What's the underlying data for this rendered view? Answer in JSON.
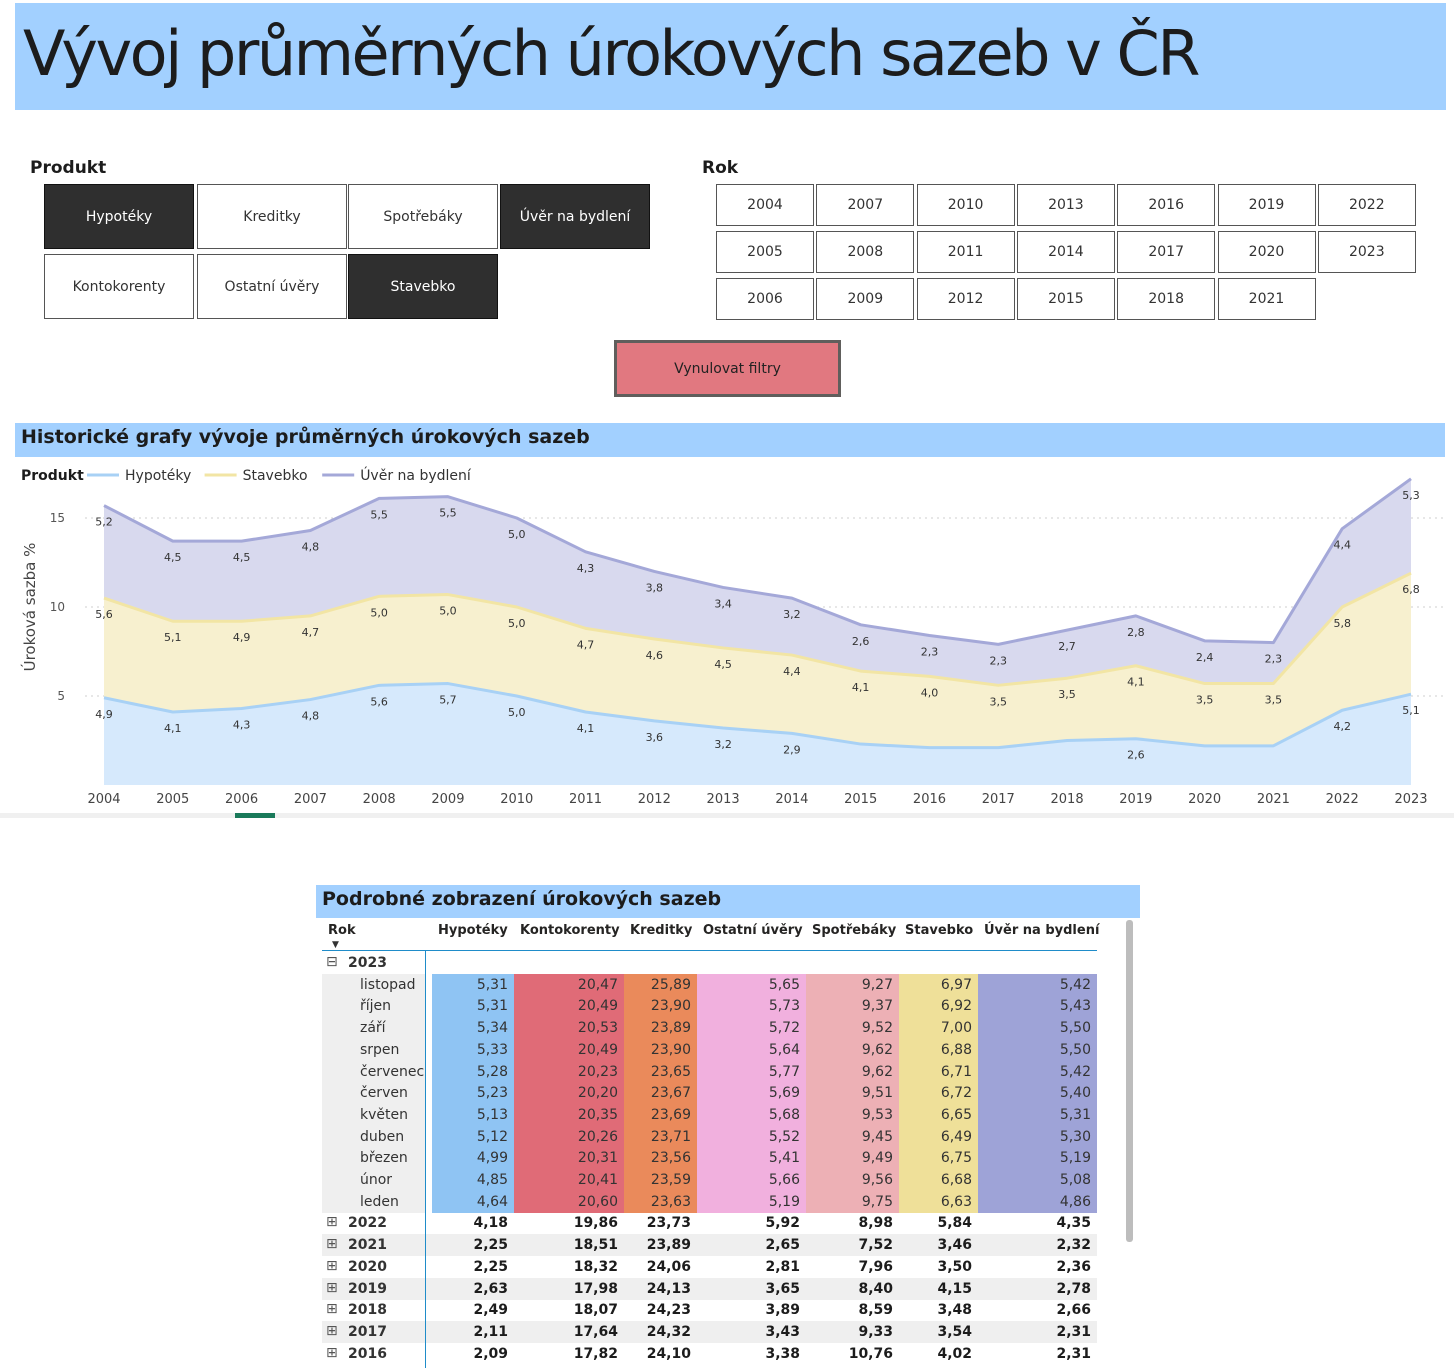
{
  "title": "Vývoj průměrných úrokových sazeb v ČR",
  "slicer_produkt": {
    "label": "Produkt",
    "items": [
      {
        "label": "Hypotéky",
        "selected": true
      },
      {
        "label": "Kreditky",
        "selected": false
      },
      {
        "label": "Spotřebáky",
        "selected": false
      },
      {
        "label": "Úvěr na bydlení",
        "selected": true
      },
      {
        "label": "Kontokorenty",
        "selected": false
      },
      {
        "label": "Ostatní úvěry",
        "selected": false
      },
      {
        "label": "Stavebko",
        "selected": true
      }
    ]
  },
  "slicer_rok": {
    "label": "Rok",
    "rows": [
      [
        "2004",
        "2007",
        "2010",
        "2013",
        "2016",
        "2019",
        "2022"
      ],
      [
        "2005",
        "2008",
        "2011",
        "2014",
        "2017",
        "2020",
        "2023"
      ],
      [
        "2006",
        "2009",
        "2012",
        "2015",
        "2018",
        "2021"
      ]
    ]
  },
  "reset_button": "Vynulovat filtry",
  "chart_section_title": "Historické grafy vývoje průměrných úrokových sazeb",
  "chart_data": {
    "type": "area",
    "stacked": true,
    "legend_title": "Produkt",
    "legend_position": "top-left",
    "ylabel": "Úroková sazba %",
    "y_ticks": [
      5,
      10,
      15
    ],
    "ylim": [
      0,
      17.5
    ],
    "grid": true,
    "x": [
      "2004",
      "2005",
      "2006",
      "2007",
      "2008",
      "2009",
      "2010",
      "2011",
      "2012",
      "2013",
      "2014",
      "2015",
      "2016",
      "2017",
      "2018",
      "2019",
      "2020",
      "2021",
      "2022",
      "2023"
    ],
    "series": [
      {
        "name": "Hypotéky",
        "color": "#a8d1f5",
        "fill": "#d6e9fc",
        "values": [
          4.9,
          4.1,
          4.3,
          4.8,
          5.6,
          5.7,
          5.0,
          4.1,
          3.6,
          3.2,
          2.9,
          2.3,
          2.1,
          2.1,
          2.5,
          2.6,
          2.2,
          2.2,
          4.2,
          5.1
        ]
      },
      {
        "name": "Stavebko",
        "color": "#f2e5a4",
        "fill": "#f7f0cf",
        "values": [
          5.6,
          5.1,
          4.9,
          4.7,
          5.0,
          5.0,
          5.0,
          4.7,
          4.6,
          4.5,
          4.4,
          4.1,
          4.0,
          3.5,
          3.5,
          4.1,
          3.5,
          3.5,
          5.8,
          6.8
        ]
      },
      {
        "name": "Úvěr na bydlení",
        "color": "#a4a8d8",
        "fill": "#d8d9ee",
        "values": [
          5.2,
          4.5,
          4.5,
          4.8,
          5.5,
          5.5,
          5.0,
          4.3,
          3.8,
          3.4,
          3.2,
          2.6,
          2.3,
          2.3,
          2.7,
          2.8,
          2.4,
          2.3,
          4.4,
          5.3
        ]
      }
    ],
    "labels": [
      [
        "4,9",
        "4,1",
        "4,3",
        "4,8",
        "5,6",
        "5,7",
        "5,0",
        "4,1",
        "3,6",
        "3,2",
        "2,9",
        "",
        "",
        "",
        "",
        "2,6",
        "",
        "",
        "4,2",
        "5,1"
      ],
      [
        "5,6",
        "5,1",
        "4,9",
        "4,7",
        "5,0",
        "5,0",
        "5,0",
        "4,7",
        "4,6",
        "4,5",
        "4,4",
        "4,1",
        "4,0",
        "3,5",
        "3,5",
        "4,1",
        "3,5",
        "3,5",
        "5,8",
        "6,8"
      ],
      [
        "5,2",
        "4,5",
        "4,5",
        "4,8",
        "5,5",
        "5,5",
        "5,0",
        "4,3",
        "3,8",
        "3,4",
        "3,2",
        "2,6",
        "2,3",
        "2,3",
        "2,7",
        "2,8",
        "2,4",
        "2,3",
        "4,4",
        "5,3"
      ]
    ]
  },
  "table": {
    "title": "Podrobné zobrazení úrokových sazeb",
    "columns": [
      "Rok",
      "Hypotéky",
      "Kontokorenty",
      "Kreditky",
      "Ostatní úvěry",
      "Spotřebáky",
      "Stavebko",
      "Úvěr na bydlení"
    ],
    "column_colors": [
      "#8fc4f3",
      "#e06b77",
      "#ea8a5b",
      "#f1b0de",
      "#edb0b5",
      "#efe099",
      "#9ea3d7"
    ],
    "expanded_year": {
      "year": "2023",
      "collapse_glyph": "⊟"
    },
    "months": [
      {
        "label": "listopad",
        "values": [
          "5,31",
          "20,47",
          "25,89",
          "5,65",
          "9,27",
          "6,97",
          "5,42"
        ]
      },
      {
        "label": "říjen",
        "values": [
          "5,31",
          "20,49",
          "23,90",
          "5,73",
          "9,37",
          "6,92",
          "5,43"
        ]
      },
      {
        "label": "září",
        "values": [
          "5,34",
          "20,53",
          "23,89",
          "5,72",
          "9,52",
          "7,00",
          "5,50"
        ]
      },
      {
        "label": "srpen",
        "values": [
          "5,33",
          "20,49",
          "23,90",
          "5,64",
          "9,62",
          "6,88",
          "5,50"
        ]
      },
      {
        "label": "červenec",
        "values": [
          "5,28",
          "20,23",
          "23,65",
          "5,77",
          "9,62",
          "6,71",
          "5,42"
        ]
      },
      {
        "label": "červen",
        "values": [
          "5,23",
          "20,20",
          "23,67",
          "5,69",
          "9,51",
          "6,72",
          "5,40"
        ]
      },
      {
        "label": "květen",
        "values": [
          "5,13",
          "20,35",
          "23,69",
          "5,68",
          "9,53",
          "6,65",
          "5,31"
        ]
      },
      {
        "label": "duben",
        "values": [
          "5,12",
          "20,26",
          "23,71",
          "5,52",
          "9,45",
          "6,49",
          "5,30"
        ]
      },
      {
        "label": "březen",
        "values": [
          "4,99",
          "20,31",
          "23,56",
          "5,41",
          "9,49",
          "6,75",
          "5,19"
        ]
      },
      {
        "label": "únor",
        "values": [
          "4,85",
          "20,41",
          "23,59",
          "5,66",
          "9,56",
          "6,68",
          "5,08"
        ]
      },
      {
        "label": "leden",
        "values": [
          "4,64",
          "20,60",
          "23,63",
          "5,19",
          "9,75",
          "6,63",
          "4,86"
        ]
      }
    ],
    "years": [
      {
        "label": "2022",
        "values": [
          "4,18",
          "19,86",
          "23,73",
          "5,92",
          "8,98",
          "5,84",
          "4,35"
        ]
      },
      {
        "label": "2021",
        "values": [
          "2,25",
          "18,51",
          "23,89",
          "2,65",
          "7,52",
          "3,46",
          "2,32"
        ]
      },
      {
        "label": "2020",
        "values": [
          "2,25",
          "18,32",
          "24,06",
          "2,81",
          "7,96",
          "3,50",
          "2,36"
        ]
      },
      {
        "label": "2019",
        "values": [
          "2,63",
          "17,98",
          "24,13",
          "3,65",
          "8,40",
          "4,15",
          "2,78"
        ]
      },
      {
        "label": "2018",
        "values": [
          "2,49",
          "18,07",
          "24,23",
          "3,89",
          "8,59",
          "3,48",
          "2,66"
        ]
      },
      {
        "label": "2017",
        "values": [
          "2,11",
          "17,64",
          "24,32",
          "3,43",
          "9,33",
          "3,54",
          "2,31"
        ]
      },
      {
        "label": "2016",
        "values": [
          "2,09",
          "17,82",
          "24,10",
          "3,38",
          "10,76",
          "4,02",
          "2,31"
        ]
      }
    ],
    "expand_glyph": "⊞"
  }
}
